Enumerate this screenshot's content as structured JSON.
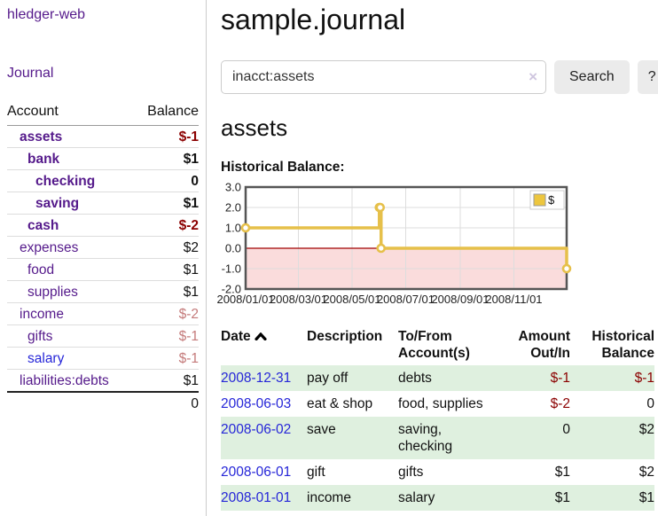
{
  "app": {
    "brand": "hledger-web",
    "nav": {
      "journal": "Journal"
    }
  },
  "sidebar": {
    "headers": {
      "account": "Account",
      "balance": "Balance"
    },
    "accounts": [
      {
        "name": "assets",
        "balance": "$-1",
        "indent": 1,
        "bold": true,
        "balance_style": "neg-strong",
        "balance_bold": true,
        "link": "purple"
      },
      {
        "name": "bank",
        "balance": "$1",
        "indent": 2,
        "bold": true,
        "balance_style": "plain",
        "balance_bold": true,
        "link": "purple"
      },
      {
        "name": "checking",
        "balance": "0",
        "indent": 3,
        "bold": true,
        "balance_style": "plain",
        "balance_bold": true,
        "link": "purple"
      },
      {
        "name": "saving",
        "balance": "$1",
        "indent": 3,
        "bold": true,
        "balance_style": "plain",
        "balance_bold": true,
        "link": "purple"
      },
      {
        "name": "cash",
        "balance": "$-2",
        "indent": 2,
        "bold": true,
        "balance_style": "neg-strong",
        "balance_bold": true,
        "link": "purple"
      },
      {
        "name": "expenses",
        "balance": "$2",
        "indent": 1,
        "bold": false,
        "balance_style": "plain",
        "balance_bold": false,
        "link": "purple"
      },
      {
        "name": "food",
        "balance": "$1",
        "indent": 2,
        "bold": false,
        "balance_style": "plain",
        "balance_bold": false,
        "link": "purple"
      },
      {
        "name": "supplies",
        "balance": "$1",
        "indent": 2,
        "bold": false,
        "balance_style": "plain",
        "balance_bold": false,
        "link": "purple"
      },
      {
        "name": "income",
        "balance": "$-2",
        "indent": 1,
        "bold": false,
        "balance_style": "neg-soft",
        "balance_bold": false,
        "link": "purple"
      },
      {
        "name": "gifts",
        "balance": "$-1",
        "indent": 2,
        "bold": false,
        "balance_style": "neg-soft",
        "balance_bold": false,
        "link": "purple"
      },
      {
        "name": "salary",
        "balance": "$-1",
        "indent": 2,
        "bold": false,
        "balance_style": "neg-soft",
        "balance_bold": false,
        "link": "blue"
      },
      {
        "name": "liabilities:debts",
        "balance": "$1",
        "indent": 1,
        "bold": false,
        "balance_style": "plain",
        "balance_bold": false,
        "link": "purple"
      }
    ],
    "total": "0"
  },
  "header": {
    "title": "sample.journal"
  },
  "search": {
    "value": "inacct:assets",
    "clear_icon": "×",
    "button_label": "Search",
    "help_label": "?"
  },
  "account_page": {
    "heading": "assets"
  },
  "chart_data": {
    "type": "line",
    "title": "Historical Balance:",
    "step": true,
    "xrange": [
      "2008-01-01",
      "2008-12-31"
    ],
    "ylim": [
      -2,
      3
    ],
    "yticks": [
      3.0,
      2.0,
      1.0,
      0.0,
      -1.0,
      -2.0
    ],
    "xticks": [
      {
        "date": "2008-01-01",
        "label": "2008/01/01"
      },
      {
        "date": "2008-03-01",
        "label": "2008/03/01"
      },
      {
        "date": "2008-05-01",
        "label": "2008/05/01"
      },
      {
        "date": "2008-07-01",
        "label": "2008/07/01"
      },
      {
        "date": "2008-09-01",
        "label": "2008/09/01"
      },
      {
        "date": "2008-11-01",
        "label": "2008/11/01"
      }
    ],
    "series": [
      {
        "name": "$",
        "color": "#E6C04A",
        "points": [
          {
            "x": "2008-01-01",
            "y": 1
          },
          {
            "x": "2008-06-01",
            "y": 2
          },
          {
            "x": "2008-06-02",
            "y": 2
          },
          {
            "x": "2008-06-03",
            "y": 0
          },
          {
            "x": "2008-12-31",
            "y": -1
          }
        ]
      }
    ],
    "legend": {
      "position": "top-right",
      "label": "$",
      "swatch_color": "#EDC63E"
    },
    "grid": true,
    "grid_color": "#dddddd",
    "border_color": "#555555",
    "zero_line_color": "#A00000",
    "negative_region_color": "#FADCDC"
  },
  "register": {
    "headers": {
      "date": "Date",
      "description": "Description",
      "accounts_line1": "To/From",
      "accounts_line2": "Account(s)",
      "amount_line1": "Amount",
      "amount_line2": "Out/In",
      "balance_line1": "Historical",
      "balance_line2": "Balance"
    },
    "sort": {
      "column": "date",
      "direction": "ascending"
    },
    "rows": [
      {
        "date": "2008-12-31",
        "description": "pay off",
        "accounts": "debts",
        "amount": "$-1",
        "amount_negative": true,
        "balance": "$-1",
        "balance_negative": true
      },
      {
        "date": "2008-06-03",
        "description": "eat & shop",
        "accounts": "food, supplies",
        "amount": "$-2",
        "amount_negative": true,
        "balance": "0",
        "balance_negative": false
      },
      {
        "date": "2008-06-02",
        "description": "save",
        "accounts": "saving, checking",
        "amount": "0",
        "amount_negative": false,
        "balance": "$2",
        "balance_negative": false
      },
      {
        "date": "2008-06-01",
        "description": "gift",
        "accounts": "gifts",
        "amount": "$1",
        "amount_negative": false,
        "balance": "$2",
        "balance_negative": false
      },
      {
        "date": "2008-01-01",
        "description": "income",
        "accounts": "salary",
        "amount": "$1",
        "amount_negative": false,
        "balance": "$1",
        "balance_negative": false
      }
    ]
  }
}
